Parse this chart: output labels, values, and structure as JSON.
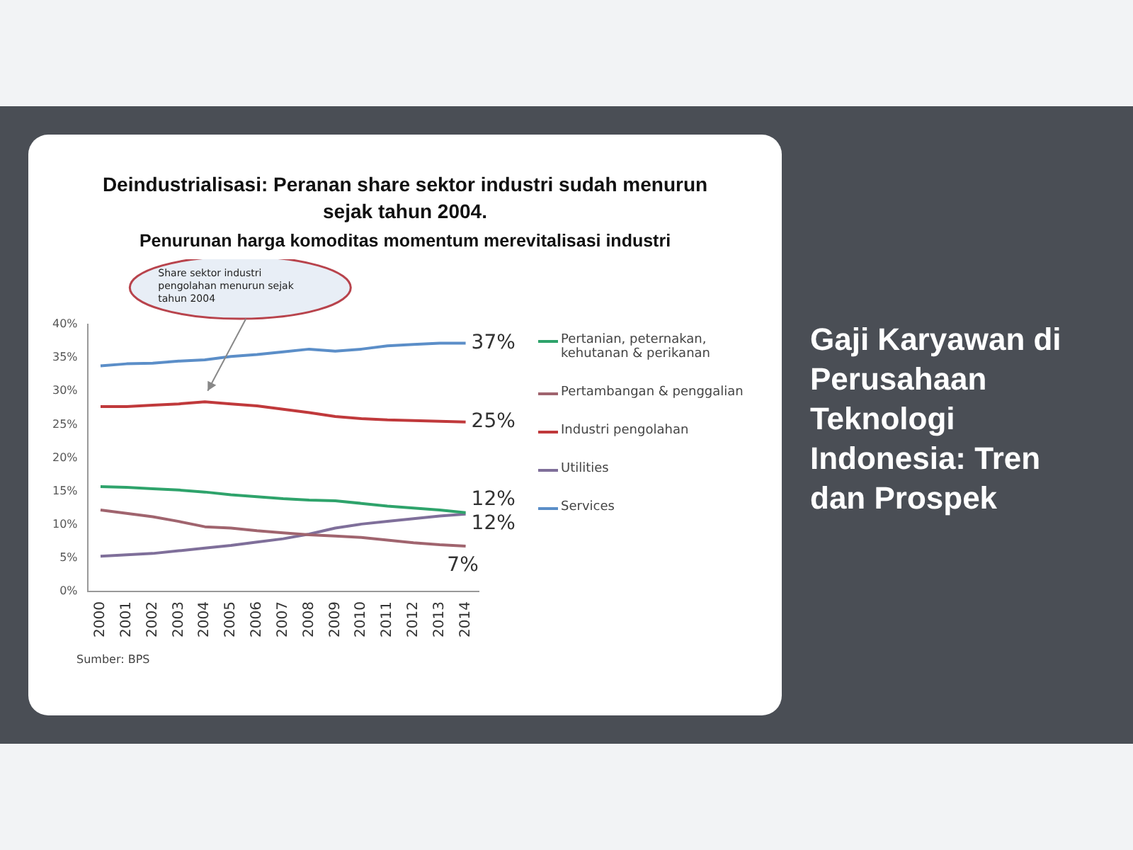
{
  "chart_data": {
    "type": "line",
    "title": "Deindustrialisasi: Peranan share sektor industri sudah menurun sejak tahun 2004.",
    "subtitle": "Penurunan harga komoditas momentum merevitalisasi industri",
    "categories": [
      "2000",
      "2001",
      "2002",
      "2003",
      "2004",
      "2005",
      "2006",
      "2007",
      "2008",
      "2009",
      "2010",
      "2011",
      "2012",
      "2013",
      "2014"
    ],
    "series": [
      {
        "name": "Pertanian, peternakan, kehutanan & perikanan",
        "color": "#2ea36b",
        "values": [
          15.7,
          15.6,
          15.4,
          15.2,
          14.9,
          14.5,
          14.2,
          13.9,
          13.7,
          13.6,
          13.2,
          12.8,
          12.5,
          12.2,
          11.8
        ],
        "value_labels": [
          null,
          null,
          null,
          null,
          null,
          null,
          null,
          null,
          null,
          null,
          null,
          null,
          null,
          null,
          "12%"
        ]
      },
      {
        "name": "Pertambangan & penggalian",
        "color": "#a0646e",
        "values": [
          12.2,
          11.7,
          11.2,
          10.5,
          9.7,
          9.5,
          9.1,
          8.8,
          8.5,
          8.3,
          8.1,
          7.7,
          7.3,
          7.0,
          6.8
        ],
        "value_labels": [
          null,
          null,
          null,
          null,
          null,
          null,
          null,
          null,
          null,
          null,
          null,
          null,
          null,
          null,
          "7%"
        ]
      },
      {
        "name": "Industri pengolahan",
        "color": "#c0393b",
        "values": [
          27.7,
          27.7,
          27.9,
          28.1,
          28.4,
          28.1,
          27.8,
          27.3,
          26.8,
          26.2,
          25.9,
          25.7,
          25.6,
          25.5,
          25.4
        ],
        "value_labels": [
          null,
          null,
          null,
          null,
          null,
          null,
          null,
          null,
          null,
          null,
          null,
          null,
          null,
          null,
          "25%"
        ]
      },
      {
        "name": "Utilities",
        "color": "#7f6f9a",
        "values": [
          5.3,
          5.5,
          5.7,
          6.1,
          6.5,
          6.9,
          7.4,
          7.9,
          8.6,
          9.5,
          10.1,
          10.5,
          10.9,
          11.3,
          11.6
        ],
        "value_labels": [
          null,
          null,
          null,
          null,
          null,
          null,
          null,
          null,
          null,
          null,
          null,
          null,
          null,
          null,
          "12%"
        ]
      },
      {
        "name": "Services",
        "color": "#5b8ec8",
        "values": [
          33.8,
          34.1,
          34.2,
          34.5,
          34.7,
          35.2,
          35.5,
          35.9,
          36.3,
          36.0,
          36.3,
          36.8,
          37.0,
          37.2,
          37.2
        ],
        "value_labels": [
          null,
          null,
          null,
          null,
          null,
          null,
          null,
          null,
          null,
          null,
          null,
          null,
          null,
          null,
          "37%"
        ]
      }
    ],
    "ylim": [
      0,
      40
    ],
    "yticks": [
      {
        "value": 0,
        "label": "0%"
      },
      {
        "value": 5,
        "label": "5%"
      },
      {
        "value": 10,
        "label": "10%"
      },
      {
        "value": 15,
        "label": "15%"
      },
      {
        "value": 20,
        "label": "20%"
      },
      {
        "value": 25,
        "label": "25%"
      },
      {
        "value": 30,
        "label": "30%"
      },
      {
        "value": 35,
        "label": "35%"
      },
      {
        "value": 40,
        "label": "40%"
      }
    ],
    "grid": false,
    "legend": "right",
    "marker": "none",
    "line_style": "solid",
    "annotations": [
      "Share sektor industri pengolahan menurun sejak tahun 2004",
      "Sumber: BPS",
      "Gaji Karyawan di Perusahaan Teknologi Indonesia: Tren dan Prospek"
    ]
  }
}
